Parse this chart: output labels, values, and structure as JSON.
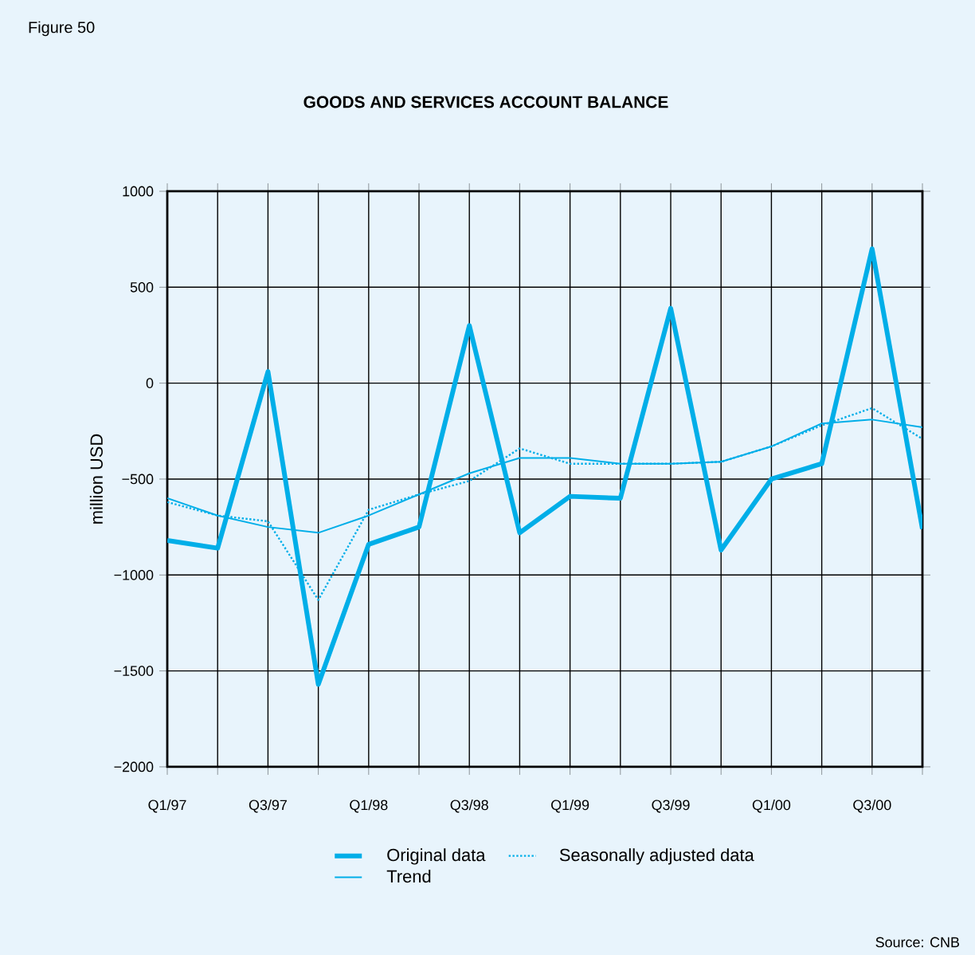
{
  "chart_data": {
    "type": "line",
    "title": "GOODS AND SERVICES ACCOUNT BALANCE",
    "ylabel": "million USD",
    "annotations": [
      "Figure 50",
      "Source: CNB"
    ],
    "categories": [
      "Q1/97",
      null,
      "Q3/97",
      null,
      "Q1/98",
      null,
      "Q3/98",
      null,
      "Q1/99",
      null,
      "Q3/99",
      null,
      "Q1/00",
      null,
      "Q3/00",
      null
    ],
    "series": [
      {
        "name": "Original data",
        "color": "#00aee8",
        "line_style": "solid",
        "values": [
          -820,
          -860,
          60,
          -1570,
          -840,
          -750,
          300,
          -780,
          -590,
          -600,
          390,
          -870,
          -500,
          -420,
          700,
          -760
        ]
      },
      {
        "name": "Seasonally adjusted data",
        "color": "#00aee8",
        "line_style": "dotted",
        "values": [
          -620,
          -690,
          -720,
          -1130,
          -660,
          -580,
          -510,
          -340,
          -420,
          -420,
          -420,
          -410,
          -330,
          -220,
          -130,
          -290
        ]
      },
      {
        "name": "Trend",
        "color": "#00aee8",
        "line_style": "solid",
        "values": [
          -600,
          -690,
          -750,
          -780,
          -690,
          -580,
          -470,
          -390,
          -390,
          -420,
          -420,
          -410,
          -330,
          -210,
          -190,
          -230
        ]
      }
    ],
    "ylim": [
      -2000,
      1000
    ],
    "yticks": [
      1000,
      500,
      0,
      {
        "value": -500,
        "label": "−500"
      },
      {
        "value": -1000,
        "label": "−1000"
      },
      {
        "value": -1500,
        "label": "−1500"
      },
      {
        "value": -2000,
        "label": "−2000"
      }
    ],
    "grid": true,
    "legend": "bottom",
    "marker": "none"
  }
}
